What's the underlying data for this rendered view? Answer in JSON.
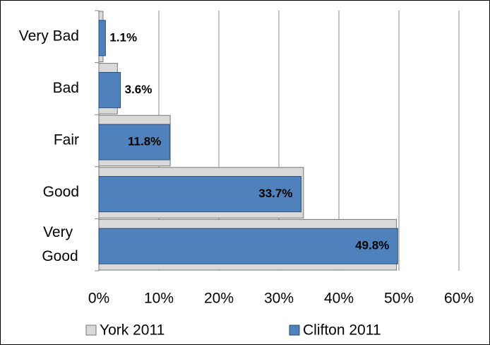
{
  "chart_data": {
    "type": "bar",
    "orientation": "horizontal",
    "categories": [
      "Very Bad",
      "Bad",
      "Fair",
      "Good",
      "Very Good"
    ],
    "series": [
      {
        "name": "York 2011",
        "color": "#d9d9d9",
        "values": [
          0.7,
          3.1,
          11.9,
          34.1,
          49.6
        ]
      },
      {
        "name": "Clifton 2011",
        "color": "#4f81bd",
        "values": [
          1.1,
          3.6,
          11.8,
          33.7,
          49.8
        ],
        "value_labels": [
          "1.1%",
          "3.6%",
          "11.8%",
          "33.7%",
          "49.8%"
        ]
      }
    ],
    "xlim": [
      0,
      60
    ],
    "xticks": [
      {
        "value": 0,
        "label": "0%"
      },
      {
        "value": 10,
        "label": "10%"
      },
      {
        "value": 20,
        "label": "20%"
      },
      {
        "value": 30,
        "label": "30%"
      },
      {
        "value": 40,
        "label": "40%"
      },
      {
        "value": 50,
        "label": "50%"
      },
      {
        "value": 60,
        "label": "60%"
      }
    ],
    "grid": true,
    "legend": "bottom"
  }
}
